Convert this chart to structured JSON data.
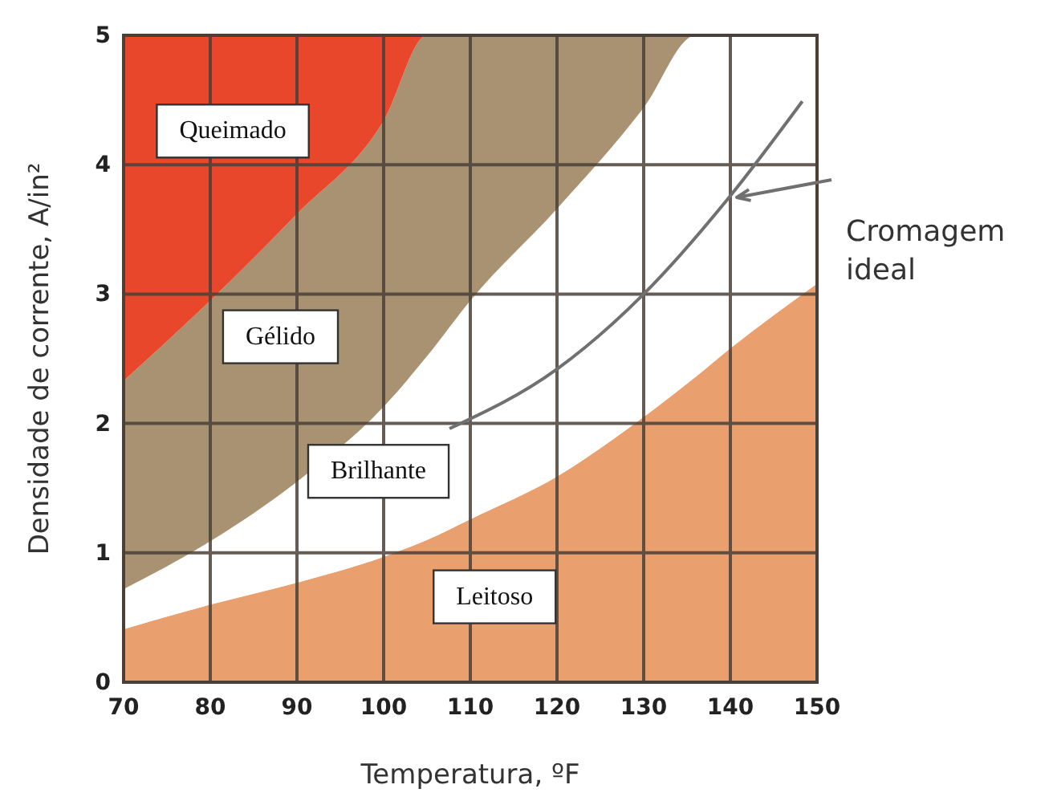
{
  "chart_data": {
    "type": "area",
    "stacked": true,
    "xlabel": "Temperatura, ºF",
    "ylabel": "Densidade de corrente, A/in²",
    "xlim": [
      70,
      150
    ],
    "xticks": [
      70,
      80,
      90,
      100,
      110,
      120,
      130,
      140,
      150
    ],
    "ylim": [
      0,
      5
    ],
    "yticks": [
      0,
      1,
      2,
      3,
      4,
      5
    ],
    "grid": true,
    "x": [
      70,
      80,
      90,
      100,
      105,
      110,
      120,
      130,
      136,
      140,
      150
    ],
    "series": [
      {
        "name": "Leitoso",
        "color": "#e9a06e",
        "values": [
          0.41,
          0.6,
          0.77,
          0.97,
          1.1,
          1.26,
          1.59,
          2.05,
          2.36,
          2.58,
          3.08
        ]
      },
      {
        "name": "Brilhante",
        "color": "#ffffff",
        "values": [
          0.31,
          0.49,
          0.78,
          1.16,
          1.42,
          1.69,
          2.07,
          2.39,
          2.64,
          2.42,
          1.92
        ]
      },
      {
        "name": "Gélido",
        "color": "#a89272",
        "values": [
          1.61,
          1.86,
          2.07,
          2.21,
          2.48,
          2.05,
          1.34,
          0.56,
          0,
          0,
          0
        ]
      },
      {
        "name": "Queimado",
        "color": "#e8472b",
        "values": [
          2.67,
          2.05,
          1.38,
          0.66,
          0,
          0,
          0,
          0,
          0,
          0,
          0
        ]
      },
      {
        "type": "line",
        "color": "#707070",
        "x": [
          107.6,
          120,
          130,
          140,
          148.3
        ],
        "values": [
          1.96,
          2.42,
          3.0,
          3.76,
          4.49
        ]
      }
    ],
    "annotations": [
      "Cromagem ideal"
    ]
  }
}
